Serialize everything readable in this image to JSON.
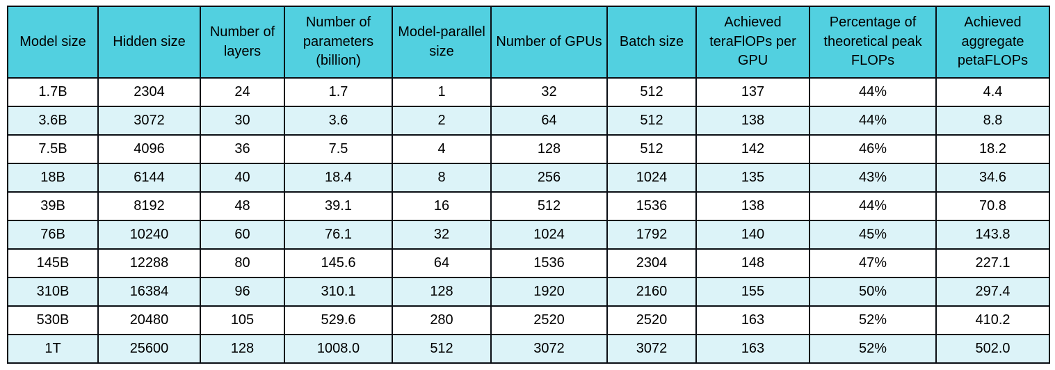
{
  "table": {
    "title": "model-scaling-results",
    "colors": {
      "header_bg": "#52d0e0",
      "alt_row_bg": "#dcf3f8",
      "row_bg": "#ffffff",
      "border": "#0a0e14",
      "text": "#000000"
    },
    "columns": [
      "Model size",
      "Hidden size",
      "Number of layers",
      "Number of parameters (billion)",
      "Model-parallel size",
      "Number of GPUs",
      "Batch size",
      "Achieved teraFlOPs per GPU",
      "Percentage of theoretical peak FLOPs",
      "Achieved aggregate petaFLOPs"
    ],
    "rows": [
      [
        "1.7B",
        "2304",
        "24",
        "1.7",
        "1",
        "32",
        "512",
        "137",
        "44%",
        "4.4"
      ],
      [
        "3.6B",
        "3072",
        "30",
        "3.6",
        "2",
        "64",
        "512",
        "138",
        "44%",
        "8.8"
      ],
      [
        "7.5B",
        "4096",
        "36",
        "7.5",
        "4",
        "128",
        "512",
        "142",
        "46%",
        "18.2"
      ],
      [
        "18B",
        "6144",
        "40",
        "18.4",
        "8",
        "256",
        "1024",
        "135",
        "43%",
        "34.6"
      ],
      [
        "39B",
        "8192",
        "48",
        "39.1",
        "16",
        "512",
        "1536",
        "138",
        "44%",
        "70.8"
      ],
      [
        "76B",
        "10240",
        "60",
        "76.1",
        "32",
        "1024",
        "1792",
        "140",
        "45%",
        "143.8"
      ],
      [
        "145B",
        "12288",
        "80",
        "145.6",
        "64",
        "1536",
        "2304",
        "148",
        "47%",
        "227.1"
      ],
      [
        "310B",
        "16384",
        "96",
        "310.1",
        "128",
        "1920",
        "2160",
        "155",
        "50%",
        "297.4"
      ],
      [
        "530B",
        "20480",
        "105",
        "529.6",
        "280",
        "2520",
        "2520",
        "163",
        "52%",
        "410.2"
      ],
      [
        "1T",
        "25600",
        "128",
        "1008.0",
        "512",
        "3072",
        "3072",
        "163",
        "52%",
        "502.0"
      ]
    ]
  }
}
